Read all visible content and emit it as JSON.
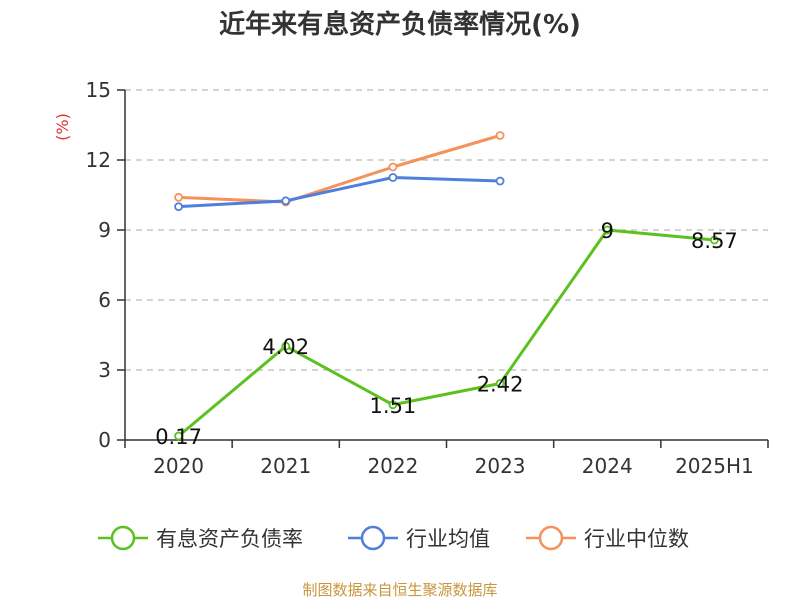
{
  "chart_data": {
    "type": "line",
    "title": "近年来有息资产负债率情况(%)",
    "unit_label": "(%)",
    "categories": [
      "2020",
      "2021",
      "2022",
      "2023",
      "2024",
      "2025H1"
    ],
    "y_ticks": [
      "0",
      "3",
      "6",
      "9",
      "12",
      "15"
    ],
    "ylim": [
      0,
      15
    ],
    "grid": true,
    "legend_position": "bottom",
    "series": [
      {
        "name": "有息资产负债率",
        "color": "#5cc11f",
        "values": [
          0.17,
          4.02,
          1.51,
          2.42,
          9,
          8.57
        ],
        "labels": [
          "0.17",
          "4.02",
          "1.51",
          "2.42",
          "9",
          "8.57"
        ]
      },
      {
        "name": "行业均值",
        "color": "#4f7fdc",
        "values": [
          10.0,
          10.25,
          11.25,
          11.1,
          null,
          null
        ]
      },
      {
        "name": "行业中位数",
        "color": "#f5925a",
        "values": [
          10.4,
          10.2,
          11.7,
          13.05,
          null,
          null
        ]
      }
    ]
  },
  "source": "制图数据来自恒生聚源数据库"
}
